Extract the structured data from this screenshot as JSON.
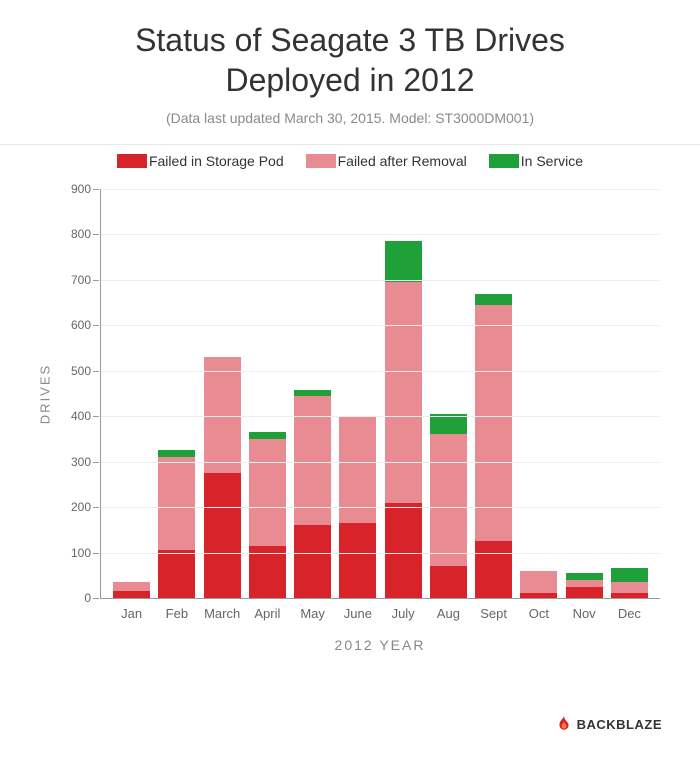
{
  "title_line1": "Status of Seagate 3 TB Drives",
  "title_line2": "Deployed in 2012",
  "subtitle": "(Data last updated March 30, 2015. Model: ST3000DM001)",
  "legend": {
    "failed_pod": "Failed in Storage Pod",
    "failed_removal": "Failed after Removal",
    "in_service": "In Service"
  },
  "colors": {
    "failed_pod": "#d8232a",
    "failed_removal": "#e98b93",
    "in_service": "#1fa038",
    "grid": "#eeeeee",
    "axis": "#999999",
    "text_muted": "#888888"
  },
  "chart": {
    "type": "stacked-bar",
    "y_max": 900,
    "y_tick_step": 100,
    "y_ticks": [
      0,
      100,
      200,
      300,
      400,
      500,
      600,
      700,
      800,
      900
    ],
    "y_axis_label": "DRIVES",
    "x_axis_label": "2012 YEAR",
    "categories": [
      "Jan",
      "Feb",
      "March",
      "April",
      "May",
      "June",
      "July",
      "Aug",
      "Sept",
      "Oct",
      "Nov",
      "Dec"
    ],
    "series": {
      "failed_pod": [
        15,
        105,
        275,
        115,
        160,
        165,
        210,
        70,
        125,
        10,
        25,
        10
      ],
      "failed_removal": [
        20,
        205,
        255,
        235,
        285,
        235,
        485,
        290,
        520,
        50,
        15,
        25
      ],
      "in_service": [
        0,
        15,
        0,
        15,
        12,
        0,
        90,
        45,
        25,
        0,
        15,
        30
      ]
    }
  },
  "brand": "BACKBLAZE"
}
